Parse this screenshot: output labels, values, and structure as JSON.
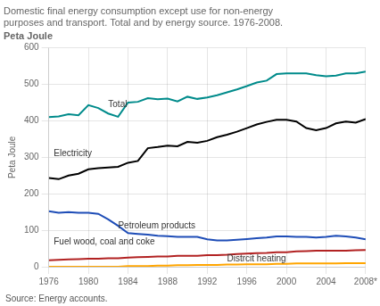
{
  "chart_data": {
    "type": "line",
    "title": [
      "Domestic final energy consumption except use for non-energy",
      "purposes and transport. Total and by energy source. 1976-2008."
    ],
    "subtitle": "Peta Joule",
    "ylabel": "Peta Joule",
    "source": "Source: Energy accounts.",
    "x": [
      1976,
      1977,
      1978,
      1979,
      1980,
      1981,
      1982,
      1983,
      1984,
      1985,
      1986,
      1987,
      1988,
      1989,
      1990,
      1991,
      1992,
      1993,
      1994,
      1995,
      1996,
      1997,
      1998,
      1999,
      2000,
      2001,
      2002,
      2003,
      2004,
      2005,
      2006,
      2007,
      2008
    ],
    "xlim": [
      1976,
      2008
    ],
    "xticks": [
      1976,
      1980,
      1984,
      1988,
      1992,
      1996,
      2000,
      2004,
      {
        "value": 2008,
        "label": "2008*"
      }
    ],
    "ylim": [
      0,
      600
    ],
    "yticks": [
      0,
      100,
      200,
      300,
      400,
      500,
      600
    ],
    "grid": true,
    "series": [
      {
        "name": "Total",
        "color": "#008B8B",
        "values": [
          410,
          412,
          418,
          415,
          443,
          435,
          420,
          411,
          450,
          452,
          462,
          459,
          461,
          453,
          466,
          460,
          464,
          470,
          478,
          486,
          495,
          505,
          510,
          528,
          530,
          530,
          530,
          525,
          522,
          524,
          530,
          530,
          535
        ]
      },
      {
        "name": "Electricity",
        "color": "#000000",
        "values": [
          243,
          240,
          250,
          255,
          267,
          270,
          272,
          274,
          285,
          290,
          325,
          328,
          332,
          330,
          342,
          340,
          345,
          355,
          362,
          370,
          380,
          390,
          397,
          403,
          403,
          398,
          380,
          374,
          380,
          393,
          398,
          395,
          405
        ]
      },
      {
        "name": "Petroleum products",
        "color": "#1E4DB7",
        "values": [
          152,
          148,
          150,
          148,
          148,
          145,
          130,
          112,
          92,
          90,
          88,
          85,
          84,
          82,
          82,
          82,
          75,
          72,
          72,
          74,
          76,
          78,
          80,
          83,
          83,
          82,
          82,
          80,
          82,
          85,
          83,
          80,
          75
        ]
      },
      {
        "name": "Fuel wood, coal and coke",
        "color": "#B22222",
        "values": [
          18,
          19,
          20,
          21,
          22,
          22,
          23,
          23,
          25,
          26,
          27,
          28,
          28,
          30,
          30,
          30,
          32,
          32,
          33,
          35,
          36,
          37,
          38,
          40,
          40,
          42,
          43,
          44,
          44,
          44,
          44,
          45,
          46
        ]
      },
      {
        "name": "Distrcit heating",
        "color": "#FFA500",
        "values": [
          0,
          0,
          0,
          0,
          0,
          0,
          0,
          0,
          2,
          2,
          2,
          3,
          3,
          4,
          4,
          5,
          5,
          5,
          6,
          6,
          7,
          7,
          7,
          8,
          8,
          9,
          9,
          9,
          9,
          9,
          10,
          10,
          10
        ]
      }
    ],
    "annotations": [
      {
        "text": "Total",
        "x": 1982,
        "y": 445
      },
      {
        "text": "Electricity",
        "x": 1976.5,
        "y": 310
      },
      {
        "text": "Petroleum products",
        "x": 1983,
        "y": 113
      },
      {
        "text": "Fuel wood, coal and coke",
        "x": 1976.5,
        "y": 68
      },
      {
        "text": "Distrcit heating",
        "x": 1994,
        "y": 22
      }
    ]
  }
}
